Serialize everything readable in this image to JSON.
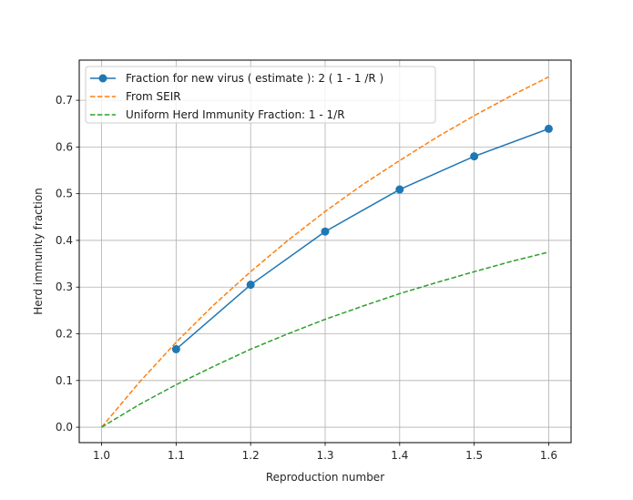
{
  "chart_data": {
    "type": "line",
    "title": "",
    "xlabel": "Reproduction number",
    "ylabel": "Herd immunity fraction",
    "xlim": [
      0.97,
      1.63
    ],
    "ylim": [
      -0.033,
      0.786
    ],
    "xticks": [
      1.0,
      1.1,
      1.2,
      1.3,
      1.4,
      1.5,
      1.6
    ],
    "xtick_labels": [
      "1.0",
      "1.1",
      "1.2",
      "1.3",
      "1.4",
      "1.5",
      "1.6"
    ],
    "yticks": [
      0.0,
      0.1,
      0.2,
      0.3,
      0.4,
      0.5,
      0.6,
      0.7
    ],
    "ytick_labels": [
      "0.0",
      "0.1",
      "0.2",
      "0.3",
      "0.4",
      "0.5",
      "0.6",
      "0.7"
    ],
    "grid": true,
    "legend_position": "upper left",
    "series": [
      {
        "name": "Fraction for new virus ( estimate ): 2 ( 1 - 1 /R  )",
        "style": "solid-with-markers",
        "color": "#1f77b4",
        "x": [
          1.1,
          1.2,
          1.3,
          1.4,
          1.5,
          1.6
        ],
        "values": [
          0.167,
          0.305,
          0.419,
          0.509,
          0.58,
          0.639
        ]
      },
      {
        "name": "From SEIR",
        "style": "dashed",
        "color": "#ff7f0e",
        "x": [
          1.0,
          1.05,
          1.1,
          1.15,
          1.2,
          1.25,
          1.3,
          1.35,
          1.4,
          1.45,
          1.5,
          1.55,
          1.6
        ],
        "values": [
          0.0,
          0.095,
          0.182,
          0.261,
          0.333,
          0.4,
          0.462,
          0.519,
          0.571,
          0.621,
          0.667,
          0.71,
          0.75
        ]
      },
      {
        "name": "Uniform Herd Immunity Fraction: 1 - 1/R",
        "style": "dashed",
        "color": "#2ca02c",
        "x": [
          1.0,
          1.05,
          1.1,
          1.15,
          1.2,
          1.25,
          1.3,
          1.35,
          1.4,
          1.45,
          1.5,
          1.55,
          1.6
        ],
        "values": [
          0.0,
          0.048,
          0.091,
          0.13,
          0.167,
          0.2,
          0.231,
          0.259,
          0.286,
          0.31,
          0.333,
          0.355,
          0.375
        ]
      }
    ]
  }
}
